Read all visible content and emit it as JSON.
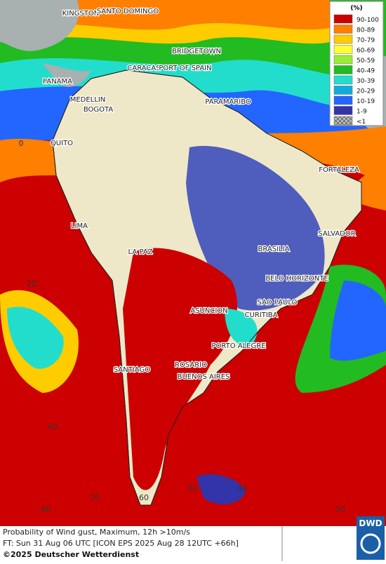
{
  "map": {
    "cities": [
      "KINGSTON",
      "SANTO DOMINGO",
      "BRIDGETOWN",
      "CARACAS",
      "PORT OF SPAIN",
      "PANAMA",
      "MEDELLIN",
      "BOGOTA",
      "PARAMARIBO",
      "QUITO",
      "FORTALEZA",
      "LIMA",
      "SALVADOR",
      "LA PAZ",
      "BRASILIA",
      "BELO HORIZONTE",
      "SAO PAULO",
      "ASUNCION",
      "CURITIBA",
      "PORTO ALEGRE",
      "SANTIAGO",
      "ROSARIO",
      "BUENOS AIRES"
    ],
    "graticule_labels": [
      "0",
      "20",
      "40",
      "80",
      "70",
      "60",
      "50",
      "40",
      "30"
    ]
  },
  "legend": {
    "title": "(%)",
    "items": [
      {
        "label": "90-100",
        "color": "#cc0000"
      },
      {
        "label": "80-89",
        "color": "#ff7f00"
      },
      {
        "label": "70-79",
        "color": "#ffcc00"
      },
      {
        "label": "60-69",
        "color": "#ffff33"
      },
      {
        "label": "50-59",
        "color": "#99ee33"
      },
      {
        "label": "40-49",
        "color": "#22bb22"
      },
      {
        "label": "30-39",
        "color": "#22ddcc"
      },
      {
        "label": "20-29",
        "color": "#11aadd"
      },
      {
        "label": "10-19",
        "color": "#2266ff"
      },
      {
        "label": "1-9",
        "color": "#3333aa"
      },
      {
        "label": "<1",
        "color": "#999999"
      }
    ]
  },
  "footer": {
    "line1": "Probability of Wind gust, Maximum, 12h >10m/s",
    "line2": "FT: Sun 31 Aug 06 UTC [ICON EPS 2025 Aug 28 12UTC +66h]",
    "copyright": "©2025 Deutscher Wetterdienst",
    "logo": "DWD"
  }
}
